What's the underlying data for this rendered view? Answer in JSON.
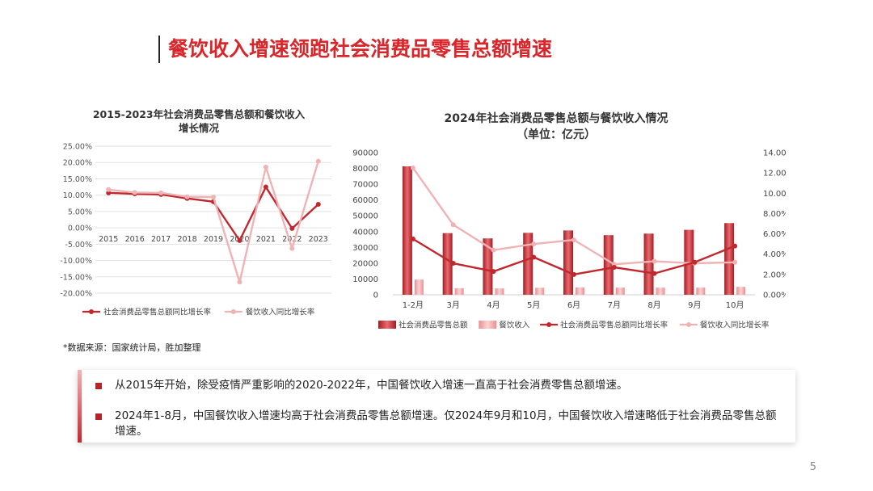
{
  "slide": {
    "title": "餐饮收入增速领跑社会消费品零售总额增速",
    "source_note": "*数据来源：国家统计局，胜加整理",
    "page_number": "5",
    "bullets": [
      "从2015年开始，除受疫情严重影响的2020-2022年，中国餐饮收入增速一直高于社会消费零售总额增速。",
      "2024年1-8月，中国餐饮收入增速均高于社会消费品零售总额增速。仅2024年9月和10月，中国餐饮收入增速略低于社会消费品零售总额增速。"
    ]
  },
  "colors": {
    "title_red": "#d9262a",
    "dark_red": "#c0282e",
    "light_pink": "#f0b3b5",
    "bar_main": "#c9343a",
    "bar_secondary": "#ee9a9d"
  },
  "chart_data": [
    {
      "type": "line",
      "title": [
        "2015-2023年社会消费品零售总额和餐饮收入",
        "增长情况"
      ],
      "categories": [
        "2015",
        "2016",
        "2017",
        "2018",
        "2019",
        "2020",
        "2021",
        "2022",
        "2023"
      ],
      "series": [
        {
          "name": "社会消费品零售总额同比增长率",
          "values": [
            10.7,
            10.4,
            10.2,
            9.0,
            8.0,
            -3.9,
            12.5,
            -0.2,
            7.2
          ],
          "color": "#c0282e"
        },
        {
          "name": "餐饮收入同比增长率",
          "values": [
            11.7,
            10.8,
            10.7,
            9.5,
            9.4,
            -16.6,
            18.6,
            -6.3,
            20.4
          ],
          "color": "#f0b3b5"
        }
      ],
      "ylim": [
        -20,
        25
      ],
      "yticks": [
        "25.00%",
        "20.00%",
        "15.00%",
        "10.00%",
        "5.00%",
        "0.00%",
        "-5.00%",
        "-10.00%",
        "-15.00%",
        "-20.00%"
      ],
      "grid": true,
      "legend": "bottom"
    },
    {
      "type": "bar",
      "title": [
        "2024年社会消费品零售总额与餐饮收入情况",
        "（单位：亿元）"
      ],
      "categories": [
        "1-2月",
        "3月",
        "4月",
        "5月",
        "6月",
        "7月",
        "8月",
        "9月",
        "10月"
      ],
      "series": [
        {
          "name": "社会消费品零售总额",
          "type": "bar",
          "axis": "left",
          "values": [
            81307,
            39020,
            35699,
            39211,
            40732,
            37757,
            38726,
            41112,
            45396
          ],
          "color": "#c9343a"
        },
        {
          "name": "餐饮收入",
          "type": "bar",
          "axis": "left",
          "values": [
            9627,
            4119,
            4000,
            4417,
            4594,
            4534,
            4523,
            4547,
            5030
          ],
          "color": "#ee9a9d"
        },
        {
          "name": "社会消费品零售总额同比增长率",
          "type": "line",
          "axis": "right",
          "values": [
            5.5,
            3.1,
            2.3,
            3.7,
            2.0,
            2.7,
            2.1,
            3.2,
            4.8
          ],
          "color": "#c0282e"
        },
        {
          "name": "餐饮收入同比增长率",
          "type": "line",
          "axis": "right",
          "values": [
            12.5,
            6.9,
            4.4,
            5.0,
            5.4,
            3.0,
            3.3,
            3.1,
            3.2
          ],
          "color": "#f0b3b5"
        }
      ],
      "ylim_left": [
        0,
        90000
      ],
      "ylim_right": [
        0,
        14
      ],
      "yticks_left": [
        "90000",
        "80000",
        "70000",
        "60000",
        "50000",
        "40000",
        "30000",
        "20000",
        "10000",
        "0"
      ],
      "yticks_right": [
        "14.00%",
        "12.00%",
        "10.00%",
        "8.00%",
        "6.00%",
        "4.00%",
        "2.00%",
        "0.00%"
      ],
      "grid": false,
      "legend": "bottom"
    }
  ]
}
